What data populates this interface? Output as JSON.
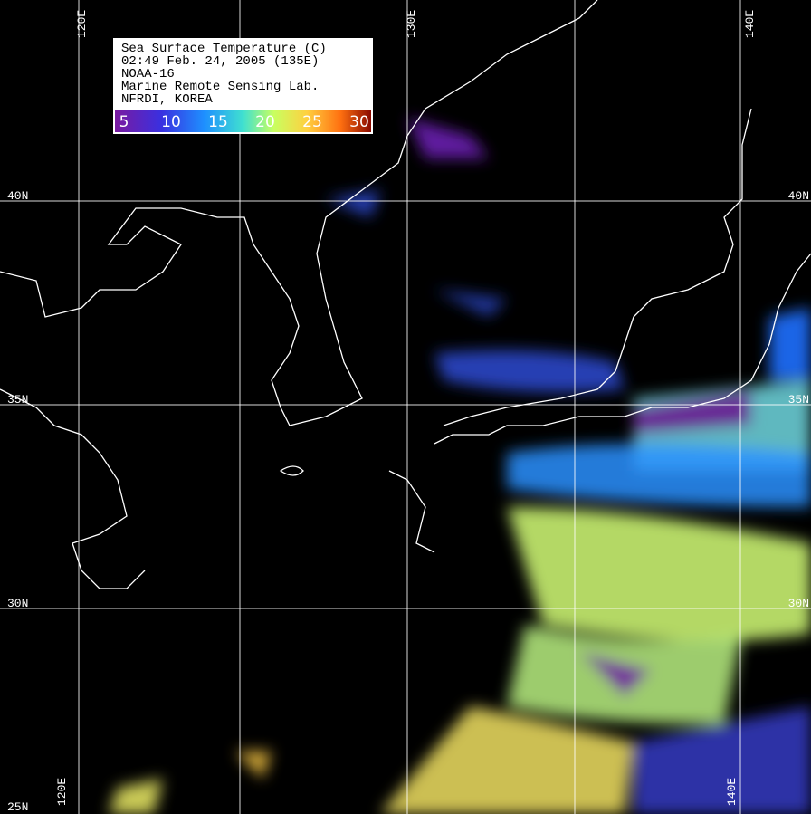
{
  "legend": {
    "lines": [
      "Sea Surface Temperature (C)",
      "02:49  Feb. 24, 2005 (135E)",
      "NOAA-16",
      "Marine Remote Sensing Lab.",
      "NFRDI, KOREA"
    ],
    "colorbar": [
      5,
      10,
      15,
      20,
      25,
      30
    ]
  },
  "grid_labels": {
    "top": [
      "120E",
      "130E",
      "140E"
    ],
    "left": [
      "40N",
      "35N",
      "30N",
      "25N"
    ],
    "right": [
      "40N",
      "35N",
      "30N"
    ],
    "bottom": [
      "120E",
      "140E"
    ]
  }
}
